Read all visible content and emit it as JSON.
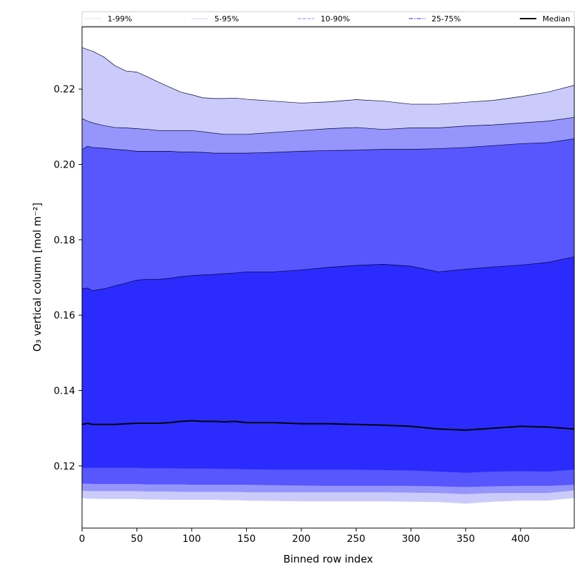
{
  "chart_data": {
    "type": "area",
    "xlabel": "Binned row index",
    "ylabel": "O₃ vertical column [mol m⁻²]",
    "xlim": [
      0,
      449
    ],
    "ylim": [
      0.1035,
      0.2365
    ],
    "x_ticks": [
      0,
      50,
      100,
      150,
      200,
      250,
      300,
      350,
      400
    ],
    "y_ticks": [
      0.12,
      0.14,
      0.16,
      0.18,
      0.2,
      0.22
    ],
    "y_tick_labels": [
      "0.12",
      "0.14",
      "0.16",
      "0.18",
      "0.20",
      "0.22"
    ],
    "legend_position": "top, above plot",
    "x": [
      0,
      5,
      10,
      20,
      30,
      40,
      50,
      60,
      70,
      80,
      90,
      100,
      110,
      120,
      130,
      140,
      150,
      175,
      200,
      225,
      250,
      275,
      300,
      325,
      350,
      375,
      400,
      425,
      449
    ],
    "bands": [
      {
        "name": "1-99%",
        "color": "#cbcbfb",
        "lower": [
          0.1115,
          0.1113,
          0.1113,
          0.1112,
          0.1112,
          0.1112,
          0.1112,
          0.1111,
          0.1111,
          0.111,
          0.111,
          0.111,
          0.111,
          0.111,
          0.1109,
          0.1109,
          0.1108,
          0.1107,
          0.1106,
          0.1106,
          0.1106,
          0.1106,
          0.1105,
          0.1104,
          0.11,
          0.1105,
          0.1108,
          0.1108,
          0.1115
        ],
        "upper": [
          0.231,
          0.2305,
          0.23,
          0.2285,
          0.2262,
          0.2248,
          0.2245,
          0.2232,
          0.2218,
          0.2205,
          0.2192,
          0.2185,
          0.2177,
          0.2175,
          0.2175,
          0.2176,
          0.2173,
          0.2168,
          0.2163,
          0.2166,
          0.2172,
          0.2168,
          0.216,
          0.216,
          0.2165,
          0.217,
          0.218,
          0.2192,
          0.221
        ]
      },
      {
        "name": "5-95%",
        "color": "#9595fb",
        "lower": [
          0.1135,
          0.1133,
          0.1133,
          0.1133,
          0.1133,
          0.1133,
          0.1133,
          0.1132,
          0.1132,
          0.1132,
          0.1131,
          0.1131,
          0.1131,
          0.1131,
          0.1131,
          0.1131,
          0.113,
          0.113,
          0.113,
          0.113,
          0.113,
          0.113,
          0.1129,
          0.1128,
          0.1125,
          0.1128,
          0.1128,
          0.1128,
          0.1135
        ],
        "upper": [
          0.2122,
          0.2115,
          0.211,
          0.2103,
          0.2098,
          0.2097,
          0.2095,
          0.2093,
          0.209,
          0.209,
          0.209,
          0.209,
          0.2087,
          0.2083,
          0.208,
          0.208,
          0.208,
          0.2085,
          0.209,
          0.2095,
          0.2098,
          0.2093,
          0.2097,
          0.2097,
          0.2102,
          0.2105,
          0.211,
          0.2115,
          0.2125
        ]
      },
      {
        "name": "10-90%",
        "color": "#5757fd",
        "lower": [
          0.1153,
          0.1153,
          0.1152,
          0.1152,
          0.1152,
          0.1152,
          0.1152,
          0.1151,
          0.1151,
          0.1151,
          0.1151,
          0.115,
          0.115,
          0.115,
          0.115,
          0.115,
          0.115,
          0.1149,
          0.1148,
          0.1147,
          0.1147,
          0.1147,
          0.1147,
          0.1146,
          0.1144,
          0.1146,
          0.1147,
          0.1147,
          0.115
        ],
        "upper": [
          0.204,
          0.2048,
          0.2045,
          0.2043,
          0.204,
          0.2038,
          0.2035,
          0.2035,
          0.2035,
          0.2035,
          0.2033,
          0.2033,
          0.2032,
          0.203,
          0.203,
          0.203,
          0.203,
          0.2032,
          0.2035,
          0.2037,
          0.2038,
          0.204,
          0.204,
          0.2042,
          0.2045,
          0.205,
          0.2055,
          0.2058,
          0.2068
        ]
      },
      {
        "name": "25-75%",
        "color": "#2b2bfd",
        "lower": [
          0.1195,
          0.1195,
          0.1195,
          0.1195,
          0.1195,
          0.1195,
          0.1195,
          0.1194,
          0.1194,
          0.1194,
          0.1193,
          0.1193,
          0.1193,
          0.1193,
          0.1192,
          0.1192,
          0.1191,
          0.119,
          0.119,
          0.119,
          0.119,
          0.1189,
          0.1188,
          0.1185,
          0.1182,
          0.1185,
          0.1186,
          0.1185,
          0.119
        ],
        "upper": [
          0.167,
          0.1672,
          0.1665,
          0.167,
          0.1678,
          0.1685,
          0.1693,
          0.1695,
          0.1695,
          0.1698,
          0.1702,
          0.1705,
          0.1707,
          0.1708,
          0.171,
          0.1712,
          0.1715,
          0.1715,
          0.172,
          0.1727,
          0.1732,
          0.1735,
          0.173,
          0.1715,
          0.1722,
          0.1728,
          0.1733,
          0.174,
          0.1755
        ]
      }
    ],
    "median": {
      "name": "Median",
      "color": "#000000",
      "values": [
        0.131,
        0.1313,
        0.131,
        0.131,
        0.131,
        0.1312,
        0.1313,
        0.1313,
        0.1313,
        0.1315,
        0.1318,
        0.132,
        0.1318,
        0.1318,
        0.1317,
        0.1318,
        0.1315,
        0.1315,
        0.1312,
        0.1312,
        0.131,
        0.1308,
        0.1305,
        0.1298,
        0.1295,
        0.13,
        0.1305,
        0.1303,
        0.1298
      ]
    },
    "legend": [
      {
        "label": "1-99%",
        "style": "solid-thin",
        "color": "#dcdcdc"
      },
      {
        "label": "5-95%",
        "style": "dotted",
        "color": "#a0a0f0"
      },
      {
        "label": "10-90%",
        "style": "dashed",
        "color": "#8080f8"
      },
      {
        "label": "25-75%",
        "style": "dashdot",
        "color": "#5050f0"
      },
      {
        "label": "Median",
        "style": "solid-thick",
        "color": "#000000"
      }
    ]
  }
}
